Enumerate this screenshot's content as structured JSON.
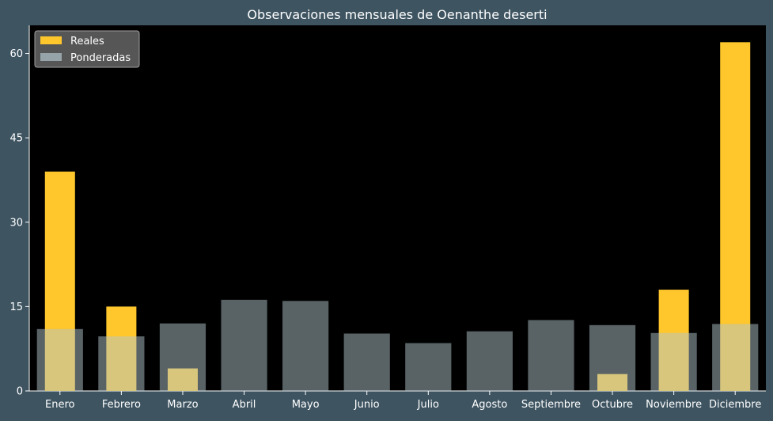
{
  "chart_data": {
    "type": "bar",
    "title": "Observaciones mensuales de Oenanthe deserti",
    "xlabel": "",
    "ylabel": "",
    "categories": [
      "Enero",
      "Febrero",
      "Marzo",
      "Abril",
      "Mayo",
      "Junio",
      "Julio",
      "Agosto",
      "Septiembre",
      "Octubre",
      "Noviembre",
      "Diciembre"
    ],
    "series": [
      {
        "name": "Reales",
        "color": "#ffc72c",
        "values": [
          39,
          15,
          4,
          0,
          0,
          0,
          0,
          0,
          0,
          3,
          18,
          62
        ]
      },
      {
        "name": "Ponderadas",
        "color": "#b2c5cc",
        "values": [
          11.0,
          9.7,
          12.0,
          16.2,
          16.0,
          10.2,
          8.5,
          10.6,
          12.6,
          11.7,
          10.3,
          11.9
        ]
      }
    ],
    "ylim": [
      0,
      65
    ],
    "yticks": [
      0,
      15,
      30,
      45,
      60
    ],
    "legend_position": "top-left",
    "grid": false,
    "background": "#000000",
    "figure_background": "#3e5461"
  }
}
